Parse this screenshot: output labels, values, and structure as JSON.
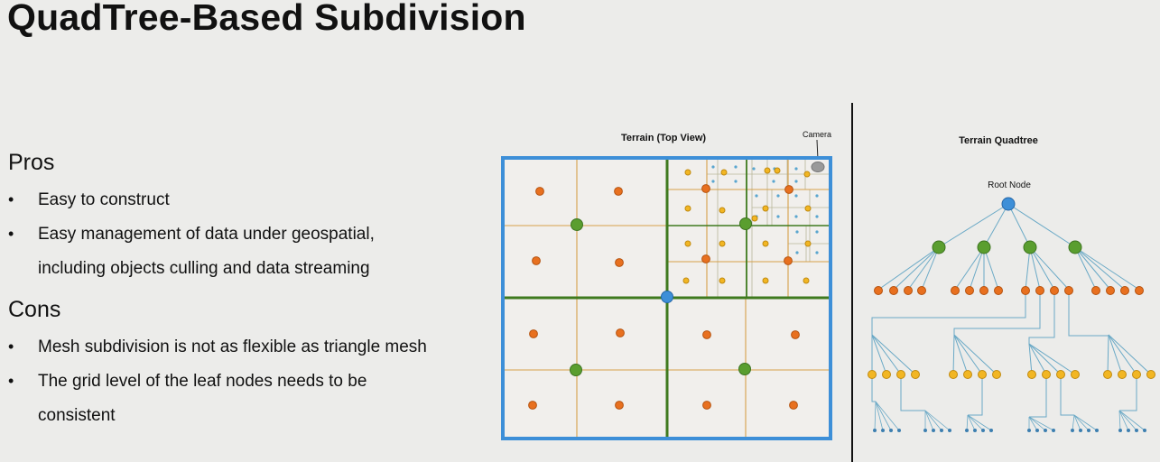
{
  "slide": {
    "title": "QuadTree-Based Subdivision",
    "pros": {
      "heading": "Pros",
      "bullets": [
        "Easy to construct",
        "Easy management of data under geospatial,",
        "including objects culling and data streaming"
      ]
    },
    "cons": {
      "heading": "Cons",
      "bullets": [
        "Mesh subdivision is not as flexible as triangle mesh",
        "The grid level of the leaf nodes needs to be",
        "consistent"
      ]
    }
  },
  "terrain_view": {
    "title": "Terrain (Top View)",
    "camera_label": "Camera"
  },
  "quadtree": {
    "title": "Terrain Quadtree",
    "root_label": "Root Node"
  },
  "colors": {
    "border_blue": "#3d8fd8",
    "green": "#5a9e2f",
    "dark_green": "#3f7a1e",
    "orange": "#e8701f",
    "yellow": "#f2b623",
    "grid_orange": "#d7a04a",
    "leaf_blue": "#5aa6cf",
    "camera_gray": "#9a9a9a"
  }
}
